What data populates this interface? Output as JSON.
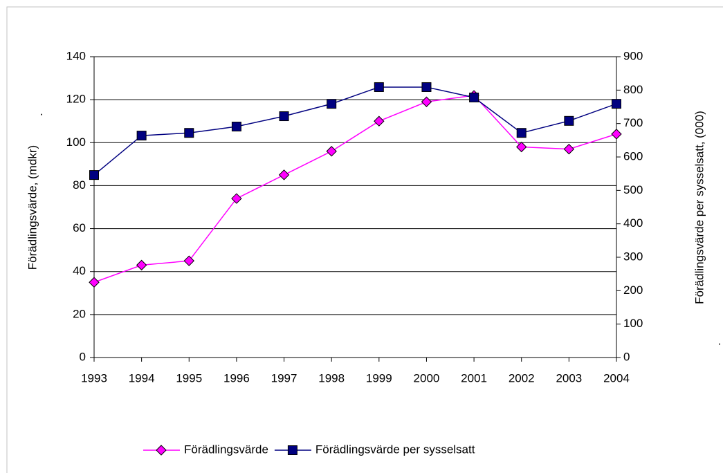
{
  "chart_data": {
    "type": "line",
    "y_label": "Förädlingsvärde, (mdkr)",
    "y2_label": "Förädlingsvärde per sysselsatt, (000)",
    "annotations": [
      ".",
      "."
    ],
    "categories": [
      "1993",
      "1994",
      "1995",
      "1996",
      "1997",
      "1998",
      "1999",
      "2000",
      "2001",
      "2002",
      "2003",
      "2004"
    ],
    "series": [
      {
        "name": "Förädlingsvärde",
        "color": "#ff00ff",
        "marker": "diamond",
        "values": [
          35,
          43,
          45,
          74,
          85,
          96,
          110,
          119,
          122,
          98,
          97,
          104
        ]
      },
      {
        "name": "Förädlingsvärde per sysselsatt",
        "color": "#000080",
        "marker": "square",
        "axis": "y2",
        "values": [
          546,
          664,
          672,
          691,
          722,
          759,
          809,
          809,
          778,
          672,
          708,
          759
        ]
      }
    ],
    "ylim": [
      0,
      140
    ],
    "yticks": [
      0,
      20,
      40,
      60,
      80,
      100,
      120,
      140
    ],
    "y2lim": [
      0,
      900
    ],
    "y2ticks": [
      0,
      100,
      200,
      300,
      400,
      500,
      600,
      700,
      800,
      900
    ],
    "grid": true,
    "legend": "bottom"
  }
}
